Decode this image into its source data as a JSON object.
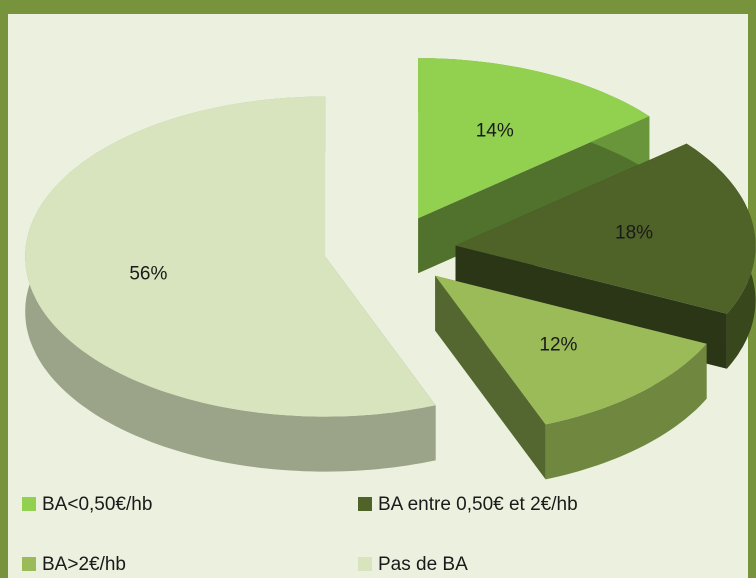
{
  "chart_data": {
    "type": "pie",
    "categories": [
      "BA<0,50€/hb",
      "BA entre 0,50€ et 2€/hb",
      "BA>2€/hb",
      "Pas de BA"
    ],
    "values": [
      14,
      18,
      12,
      56
    ],
    "value_labels": [
      "14%",
      "18%",
      "12%",
      "56%"
    ],
    "colors": [
      "#92d050",
      "#4f6228",
      "#9bbb59",
      "#d7e4bd"
    ]
  }
}
